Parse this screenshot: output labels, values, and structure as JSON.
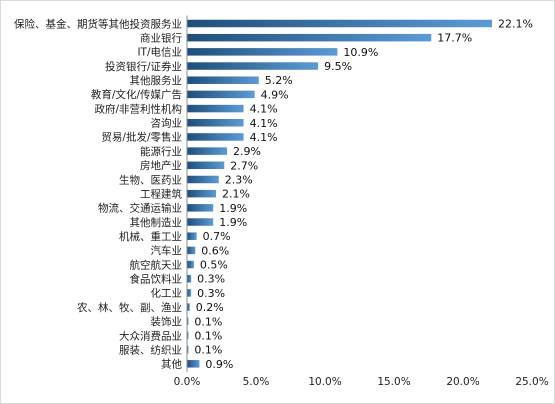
{
  "chart_data": {
    "type": "bar",
    "orientation": "horizontal",
    "categories": [
      "保险、基金、期货等其他投资服务业",
      "商业银行",
      "IT/电信业",
      "投资银行/证券业",
      "其他服务业",
      "教育/文化/传媒广告",
      "政府/非营利性机构",
      "咨询业",
      "贸易/批发/零售业",
      "能源行业",
      "房地产业",
      "生物、医药业",
      "工程建筑",
      "物流、交通运输业",
      "其他制造业",
      "机械、重工业",
      "汽车业",
      "航空航天业",
      "食品饮料业",
      "化工业",
      "农、林、牧、副、渔业",
      "装饰业",
      "大众消费品业",
      "服装、纺织业",
      "其他"
    ],
    "values": [
      22.1,
      17.7,
      10.9,
      9.5,
      5.2,
      4.9,
      4.1,
      4.1,
      4.1,
      2.9,
      2.7,
      2.3,
      2.1,
      1.9,
      1.9,
      0.7,
      0.6,
      0.5,
      0.3,
      0.3,
      0.2,
      0.1,
      0.1,
      0.1,
      0.9
    ],
    "value_labels": [
      "22.1%",
      "17.7%",
      "10.9%",
      "9.5%",
      "5.2%",
      "4.9%",
      "4.1%",
      "4.1%",
      "4.1%",
      "2.9%",
      "2.7%",
      "2.3%",
      "2.1%",
      "1.9%",
      "1.9%",
      "0.7%",
      "0.6%",
      "0.5%",
      "0.3%",
      "0.3%",
      "0.2%",
      "0.1%",
      "0.1%",
      "0.1%",
      "0.9%"
    ],
    "x_ticks": [
      0,
      5,
      10,
      15,
      20,
      25
    ],
    "x_tick_labels": [
      "0.0%",
      "5.0%",
      "10.0%",
      "15.0%",
      "20.0%",
      "25.0%"
    ],
    "xlim": [
      0,
      25
    ],
    "title": "",
    "xlabel": "",
    "ylabel": "",
    "grid": false,
    "legend": "none",
    "bar_color_dark": "#1f4e79",
    "bar_color_light": "#5b9bd5"
  }
}
